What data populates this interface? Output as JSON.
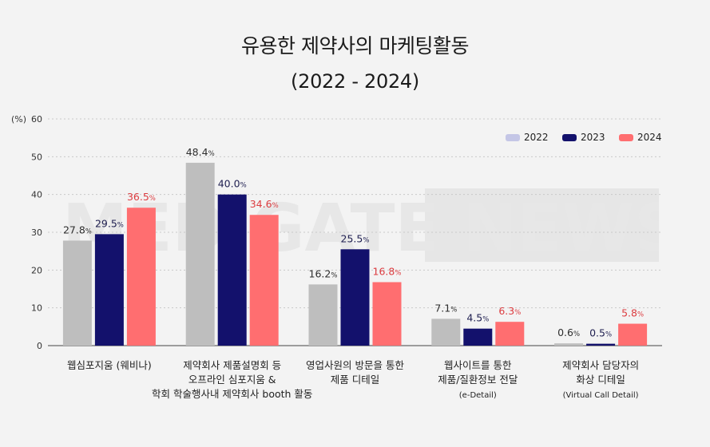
{
  "chart_data": {
    "type": "bar",
    "title": "유용한 제약사의 마케팅활동",
    "subtitle": "(2022 - 2024)",
    "ylabel": "(%)",
    "ylim": [
      0,
      60
    ],
    "yticks": [
      0,
      10,
      20,
      30,
      40,
      50,
      60
    ],
    "grid": true,
    "legend_position": "top-right",
    "watermark": "MEDIGATE NEWS",
    "value_suffix": "%",
    "categories": [
      [
        "웹심포지움 (웨비나)"
      ],
      [
        "제약회사 제품설명회 등",
        "오프라인 심포지움 &",
        "학회 학술행사내 제약회사 booth 활동"
      ],
      [
        "영업사원의 방문을 통한",
        "제품 디테일"
      ],
      [
        "웹사이트를 통한",
        "제품/질환정보 전달",
        "(e-Detail)"
      ],
      [
        "제약회사 담당자의",
        "화상 디테일",
        "(Virtual Call Detail)"
      ]
    ],
    "series": [
      {
        "name": "2022",
        "color": "#bebebe",
        "legend_color": "#c4c6e6",
        "label_color": "#2e2e2e",
        "values": [
          27.8,
          48.4,
          16.2,
          7.1,
          0.6
        ]
      },
      {
        "name": "2023",
        "color": "#13116c",
        "legend_color": "#13116c",
        "label_color": "#1f1f50",
        "values": [
          29.5,
          40.0,
          25.5,
          4.5,
          0.5
        ]
      },
      {
        "name": "2024",
        "color": "#ff6e70",
        "legend_color": "#ff6e70",
        "label_color": "#dc3c40",
        "values": [
          36.5,
          34.6,
          16.8,
          6.3,
          5.8
        ]
      }
    ]
  }
}
